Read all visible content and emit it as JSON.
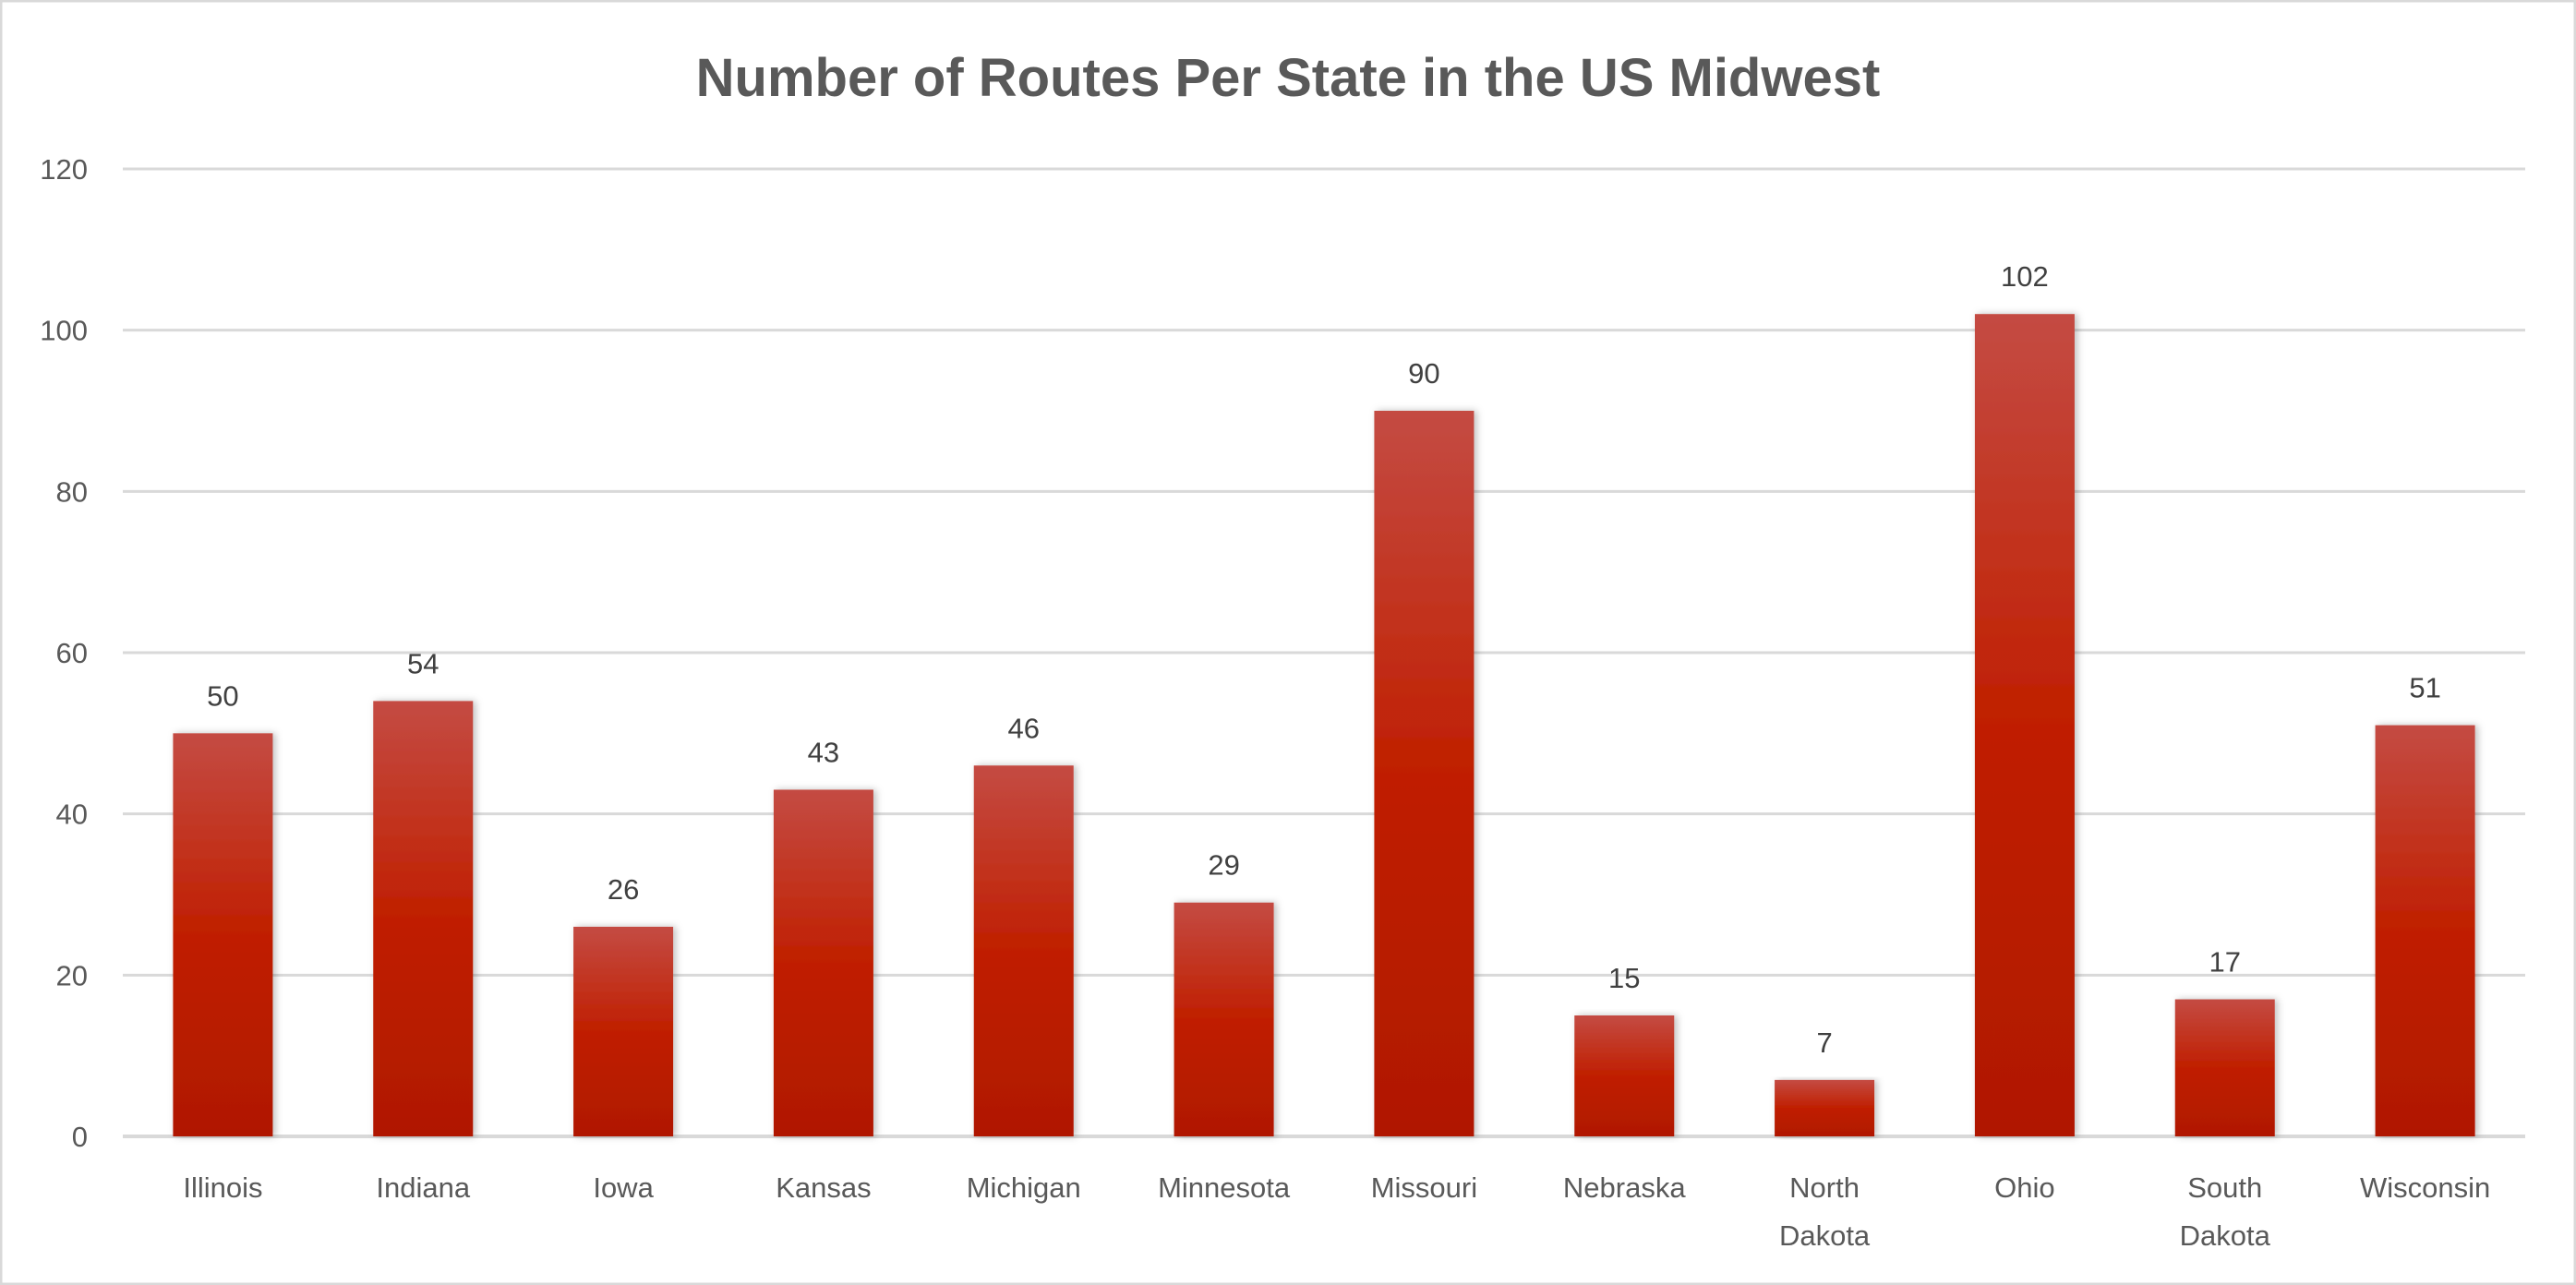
{
  "chart_data": {
    "type": "bar",
    "title": "Number of Routes Per State in the US Midwest",
    "xlabel": "",
    "ylabel": "",
    "categories": [
      "Illinois",
      "Indiana",
      "Iowa",
      "Kansas",
      "Michigan",
      "Minnesota",
      "Missouri",
      "Nebraska",
      "North Dakota",
      "Ohio",
      "South Dakota",
      "Wisconsin"
    ],
    "values": [
      50,
      54,
      26,
      43,
      46,
      29,
      90,
      15,
      7,
      102,
      17,
      51
    ],
    "ylim": [
      0,
      120
    ],
    "yticks": [
      0,
      20,
      40,
      60,
      80,
      100,
      120
    ],
    "grid": true,
    "legend": "none",
    "data_labels": true,
    "colors": {
      "bar_top": "#c44b43",
      "bar_mid": "#c01f00",
      "bar_bottom": "#b01800",
      "grid": "#d9d9d9",
      "text": "#595959"
    }
  }
}
